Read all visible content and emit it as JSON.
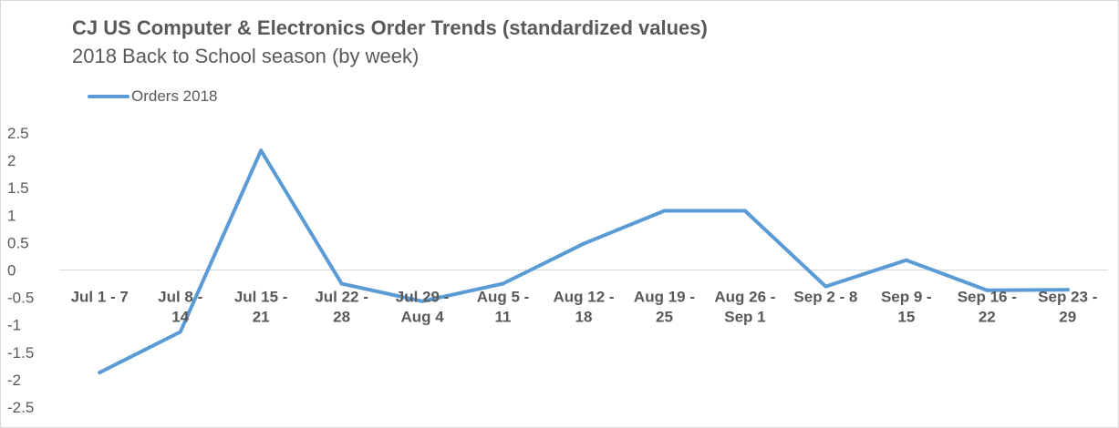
{
  "chart_data": {
    "type": "line",
    "title": "CJ US Computer & Electronics Order Trends (standardized values)",
    "subtitle": "2018 Back to School season (by week)",
    "xlabel": "",
    "ylabel": "",
    "categories": [
      [
        "Jul 1 - 7",
        ""
      ],
      [
        "Jul 8 -",
        "14"
      ],
      [
        "Jul 15 -",
        "21"
      ],
      [
        "Jul 22 -",
        "28"
      ],
      [
        "Jul 29 -",
        "Aug 4"
      ],
      [
        "Aug 5 -",
        "11"
      ],
      [
        "Aug 12 -",
        "18"
      ],
      [
        "Aug 19 -",
        "25"
      ],
      [
        "Aug 26 -",
        "Sep 1"
      ],
      [
        "Sep 2 - 8",
        ""
      ],
      [
        "Sep 9 -",
        "15"
      ],
      [
        "Sep 16 -",
        "22"
      ],
      [
        "Sep 23 -",
        "29"
      ]
    ],
    "series": [
      {
        "name": "Orders 2018",
        "color": "#5b9bd5",
        "values": [
          -1.87,
          -1.13,
          2.18,
          -0.25,
          -0.57,
          -0.25,
          0.48,
          1.08,
          1.08,
          -0.3,
          0.18,
          -0.37,
          -0.36
        ]
      }
    ],
    "ylim": [
      -2.5,
      2.5
    ],
    "yticks": [
      "2.5",
      "2",
      "1.5",
      "1",
      "0.5",
      "0",
      "-0.5",
      "-1",
      "-1.5",
      "-2",
      "-2.5"
    ],
    "ytick_values": [
      2.5,
      2,
      1.5,
      1,
      0.5,
      0,
      -0.5,
      -1,
      -1.5,
      -2,
      -2.5
    ],
    "grid": false,
    "legend_position": "top-left"
  }
}
